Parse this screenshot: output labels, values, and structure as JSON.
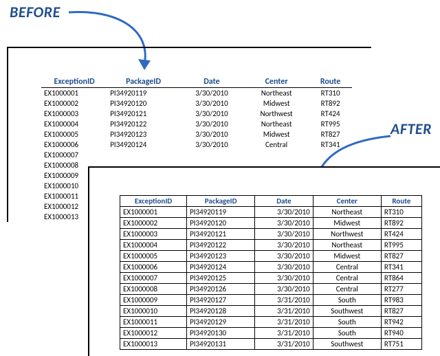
{
  "labels": {
    "before": "BEFORE",
    "after": "AFTER"
  },
  "columns": {
    "exception_id": "ExceptionID",
    "package_id": "PackageID",
    "date": "Date",
    "center": "Center",
    "route": "Route"
  },
  "before_rows": [
    {
      "ex": "EX1000001",
      "pkg": "PI34920119",
      "date": "3/30/2010",
      "ctr": "Northeast",
      "rt": "RT310"
    },
    {
      "ex": "EX1000002",
      "pkg": "PI34920120",
      "date": "3/30/2010",
      "ctr": "Midwest",
      "rt": "RT892"
    },
    {
      "ex": "EX1000003",
      "pkg": "PI34920121",
      "date": "3/30/2010",
      "ctr": "Northwest",
      "rt": "RT424"
    },
    {
      "ex": "EX1000004",
      "pkg": "PI34920122",
      "date": "3/30/2010",
      "ctr": "Northeast",
      "rt": "RT995"
    },
    {
      "ex": "EX1000005",
      "pkg": "PI34920123",
      "date": "3/30/2010",
      "ctr": "Midwest",
      "rt": "RT827"
    },
    {
      "ex": "EX1000006",
      "pkg": "PI34920124",
      "date": "3/30/2010",
      "ctr": "Central",
      "rt": "RT341"
    },
    {
      "ex": "EX1000007"
    },
    {
      "ex": "EX1000008"
    },
    {
      "ex": "EX1000009"
    },
    {
      "ex": "EX1000010"
    },
    {
      "ex": "EX1000011"
    },
    {
      "ex": "EX1000012"
    },
    {
      "ex": "EX1000013"
    }
  ],
  "after_rows": [
    {
      "ex": "EX1000001",
      "pkg": "PI34920119",
      "date": "3/30/2010",
      "ctr": "Northeast",
      "rt": "RT310"
    },
    {
      "ex": "EX1000002",
      "pkg": "PI34920120",
      "date": "3/30/2010",
      "ctr": "Midwest",
      "rt": "RT892"
    },
    {
      "ex": "EX1000003",
      "pkg": "PI34920121",
      "date": "3/30/2010",
      "ctr": "Northwest",
      "rt": "RT424"
    },
    {
      "ex": "EX1000004",
      "pkg": "PI34920122",
      "date": "3/30/2010",
      "ctr": "Northeast",
      "rt": "RT995"
    },
    {
      "ex": "EX1000005",
      "pkg": "PI34920123",
      "date": "3/30/2010",
      "ctr": "Midwest",
      "rt": "RT827"
    },
    {
      "ex": "EX1000006",
      "pkg": "PI34920124",
      "date": "3/30/2010",
      "ctr": "Central",
      "rt": "RT341"
    },
    {
      "ex": "EX1000007",
      "pkg": "PI34920125",
      "date": "3/30/2010",
      "ctr": "Central",
      "rt": "RT864"
    },
    {
      "ex": "EX1000008",
      "pkg": "PI34920126",
      "date": "3/30/2010",
      "ctr": "Central",
      "rt": "RT277"
    },
    {
      "ex": "EX1000009",
      "pkg": "PI34920127",
      "date": "3/31/2010",
      "ctr": "South",
      "rt": "RT983"
    },
    {
      "ex": "EX1000010",
      "pkg": "PI34920128",
      "date": "3/31/2010",
      "ctr": "Southwest",
      "rt": "RT827"
    },
    {
      "ex": "EX1000011",
      "pkg": "PI34920129",
      "date": "3/31/2010",
      "ctr": "South",
      "rt": "RT942"
    },
    {
      "ex": "EX1000012",
      "pkg": "PI34920130",
      "date": "3/31/2010",
      "ctr": "South",
      "rt": "RT940"
    },
    {
      "ex": "EX1000013",
      "pkg": "PI34920131",
      "date": "3/31/2010",
      "ctr": "Southwest",
      "rt": "RT751"
    }
  ],
  "style": {
    "arrow_color": "#2e6ac4",
    "arrow_width": 3,
    "header_color": "#1f4e8f",
    "grid_color": "#000000",
    "font_family": "Calibri",
    "before_has_grid": false,
    "after_has_grid": true
  }
}
